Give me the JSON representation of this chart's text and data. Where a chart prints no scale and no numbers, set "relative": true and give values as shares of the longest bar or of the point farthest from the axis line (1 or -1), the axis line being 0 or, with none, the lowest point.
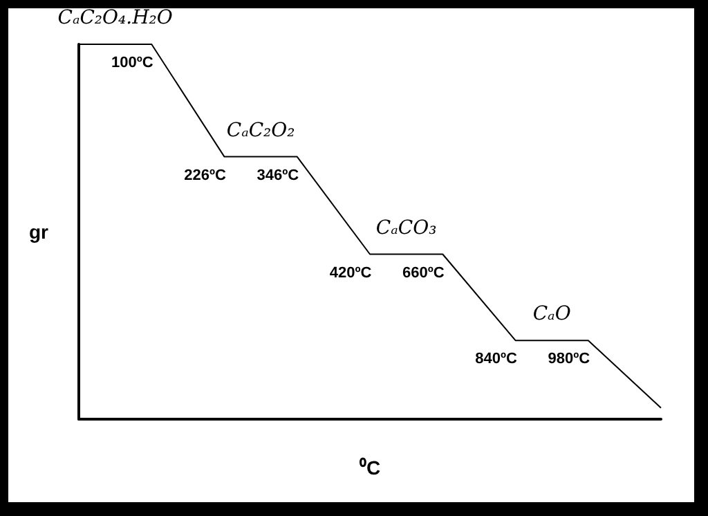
{
  "chart_data": {
    "type": "line",
    "relative": true,
    "xlabel": "⁰C",
    "ylabel": "gr",
    "categories": [
      null,
      null,
      null,
      null,
      null,
      null,
      null,
      null,
      null
    ],
    "series": [
      {
        "color": "#000000",
        "values": [
          1,
          1,
          0.7,
          0.7,
          0.44,
          0.44,
          0.21,
          0.21,
          0.03
        ]
      }
    ],
    "annotations": [
      "CₐC₂O₄.H₂O",
      "CₐC₂O₂",
      "CₐCO₃",
      "CₐO",
      "100ºC",
      "226ºC",
      "346ºC",
      "420ºC",
      "660ºC",
      "840ºC",
      "980ºC"
    ],
    "marker": "none",
    "line_style": "solid"
  }
}
